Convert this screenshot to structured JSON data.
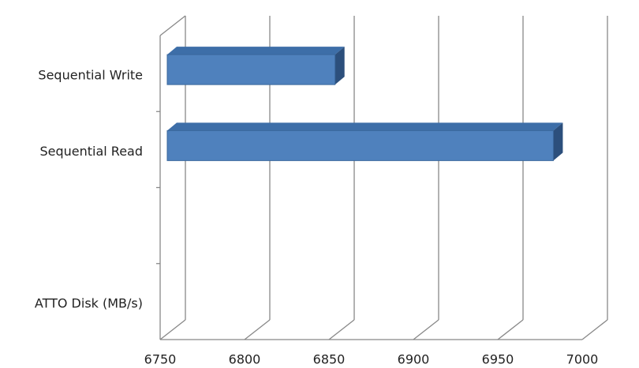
{
  "chart_data": {
    "type": "bar3d",
    "orientation": "horizontal",
    "categories": [
      "Sequential Write",
      "Sequential Read",
      null,
      "ATTO Disk (MB/s)"
    ],
    "values": [
      6853,
      6987,
      null,
      null
    ],
    "color": "#4f81bd",
    "xlim": [
      6750,
      7000
    ],
    "xticks": [
      6750,
      6800,
      6850,
      6900,
      6950,
      7000
    ],
    "grid": true
  }
}
